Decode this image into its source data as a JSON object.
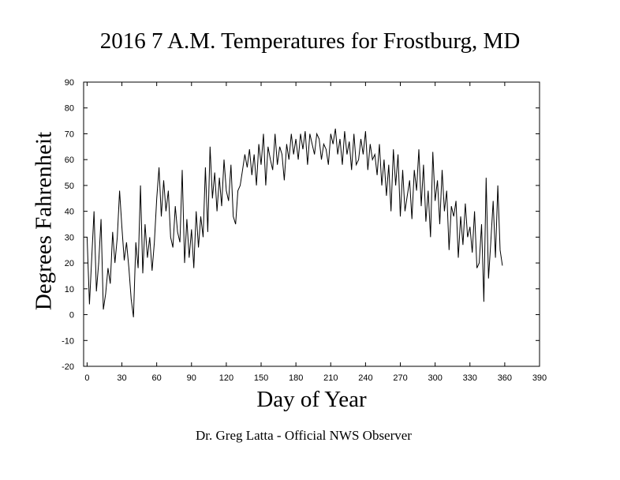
{
  "title": "2016 7 A.M. Temperatures for Frostburg, MD",
  "credit": "Dr. Greg Latta - Official NWS Observer",
  "chart_data": {
    "type": "line",
    "title": "2016 7 A.M. Temperatures for Frostburg, MD",
    "xlabel": "Day of Year",
    "ylabel": "Degrees Fahrenheit",
    "xlim": [
      -3,
      390
    ],
    "ylim": [
      -20,
      90
    ],
    "xticks": [
      0,
      30,
      60,
      90,
      120,
      150,
      180,
      210,
      240,
      270,
      300,
      330,
      360,
      390
    ],
    "yticks": [
      -20,
      -10,
      0,
      10,
      20,
      30,
      40,
      50,
      60,
      70,
      80,
      90
    ],
    "grid": false,
    "series": [
      {
        "color": "#000000",
        "x": [
          0,
          2,
          4,
          6,
          8,
          10,
          12,
          14,
          16,
          18,
          20,
          22,
          24,
          26,
          28,
          30,
          32,
          34,
          36,
          38,
          40,
          42,
          44,
          46,
          48,
          50,
          52,
          54,
          56,
          58,
          60,
          62,
          64,
          66,
          68,
          70,
          72,
          74,
          76,
          78,
          80,
          82,
          84,
          86,
          88,
          90,
          92,
          94,
          96,
          98,
          100,
          102,
          104,
          106,
          108,
          110,
          112,
          114,
          116,
          118,
          120,
          122,
          124,
          126,
          128,
          130,
          132,
          134,
          136,
          138,
          140,
          142,
          144,
          146,
          148,
          150,
          152,
          154,
          156,
          158,
          160,
          162,
          164,
          166,
          168,
          170,
          172,
          174,
          176,
          178,
          180,
          182,
          184,
          186,
          188,
          190,
          192,
          194,
          196,
          198,
          200,
          202,
          204,
          206,
          208,
          210,
          212,
          214,
          216,
          218,
          220,
          222,
          224,
          226,
          228,
          230,
          232,
          234,
          236,
          238,
          240,
          242,
          244,
          246,
          248,
          250,
          252,
          254,
          256,
          258,
          260,
          262,
          264,
          266,
          268,
          270,
          272,
          274,
          276,
          278,
          280,
          282,
          284,
          286,
          288,
          290,
          292,
          294,
          296,
          298,
          300,
          302,
          304,
          306,
          308,
          310,
          312,
          314,
          316,
          318,
          320,
          322,
          324,
          326,
          328,
          330,
          332,
          334,
          336,
          338,
          340,
          342,
          344,
          346,
          348,
          350,
          352,
          354,
          356,
          358
        ],
        "y": [
          30,
          4,
          22,
          40,
          9,
          20,
          37,
          2,
          8,
          18,
          12,
          32,
          20,
          30,
          48,
          34,
          21,
          28,
          18,
          6,
          -1,
          28,
          18,
          50,
          16,
          35,
          22,
          30,
          17,
          28,
          45,
          57,
          38,
          52,
          40,
          48,
          30,
          26,
          42,
          32,
          28,
          56,
          20,
          37,
          22,
          33,
          18,
          40,
          26,
          38,
          30,
          57,
          32,
          65,
          45,
          55,
          40,
          53,
          42,
          60,
          48,
          44,
          58,
          38,
          35,
          48,
          50,
          56,
          62,
          57,
          64,
          54,
          62,
          50,
          66,
          58,
          70,
          50,
          65,
          60,
          56,
          70,
          58,
          65,
          62,
          52,
          66,
          60,
          70,
          62,
          68,
          60,
          70,
          64,
          71,
          58,
          70,
          66,
          62,
          70,
          68,
          60,
          66,
          64,
          58,
          70,
          66,
          72,
          62,
          68,
          58,
          71,
          62,
          67,
          56,
          70,
          58,
          60,
          68,
          62,
          71,
          56,
          66,
          60,
          62,
          54,
          66,
          50,
          60,
          46,
          58,
          40,
          64,
          50,
          62,
          38,
          56,
          40,
          46,
          52,
          37,
          56,
          48,
          64,
          42,
          58,
          36,
          48,
          30,
          63,
          44,
          52,
          35,
          56,
          40,
          48,
          25,
          42,
          38,
          44,
          22,
          38,
          27,
          43,
          30,
          34,
          24,
          40,
          18,
          20,
          35,
          5,
          53,
          14,
          28,
          44,
          22,
          50,
          25,
          19
        ]
      }
    ]
  }
}
